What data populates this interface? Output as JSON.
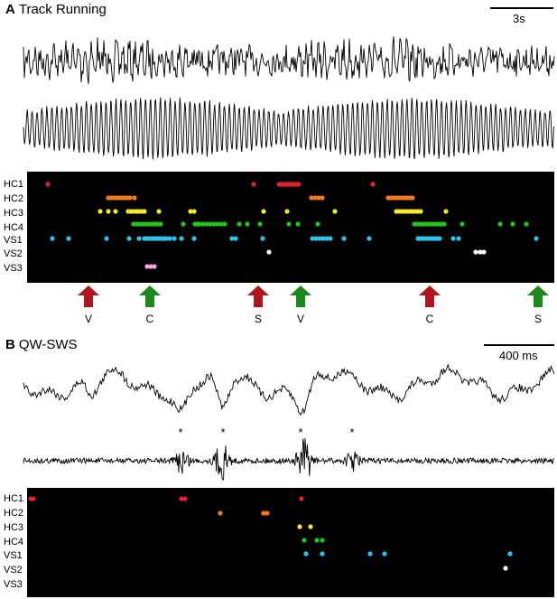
{
  "panel_a": {
    "letter": "A",
    "title": "Track Running",
    "scale_label": "3s",
    "row_labels": [
      "HC1",
      "HC2",
      "HC3",
      "HC4",
      "VS1",
      "VS2",
      "VS3"
    ],
    "row_colors": [
      "#e8202a",
      "#f07a21",
      "#f4ea2a",
      "#22c21f",
      "#2ec3ea",
      "#ffffff",
      "#f6a3e0"
    ],
    "arrows": [
      {
        "label": "V",
        "color": "#b0141c",
        "direction": "up"
      },
      {
        "label": "C",
        "color": "#1b8a1b",
        "direction": "up"
      },
      {
        "label": "S",
        "color": "#b0141c",
        "direction": "up"
      },
      {
        "label": "V",
        "color": "#1b8a1b",
        "direction": "up"
      },
      {
        "label": "C",
        "color": "#b0141c",
        "direction": "up"
      },
      {
        "label": "S",
        "color": "#1b8a1b",
        "direction": "up"
      }
    ]
  },
  "panel_b": {
    "letter": "B",
    "title": "QW-SWS",
    "scale_label": "400 ms",
    "stars": [
      "*",
      "*",
      "*",
      "*"
    ],
    "row_labels": [
      "HC1",
      "HC2",
      "HC3",
      "HC4",
      "VS1",
      "VS2",
      "VS3"
    ],
    "row_colors": [
      "#e8202a",
      "#f07a21",
      "#f4ea2a",
      "#22c21f",
      "#2ec3ea",
      "#ffffff",
      "#f6a3e0"
    ]
  }
}
